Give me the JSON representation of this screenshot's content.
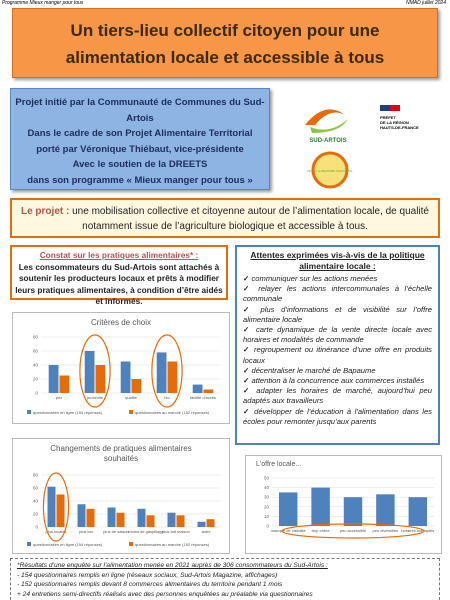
{
  "header": {
    "left": "Programme Mieux manger pour tous",
    "right": "NMAD juillet 2024"
  },
  "title": "Un tiers-lieu collectif citoyen pour une alimentation locale et accessible à tous",
  "intro": [
    "Projet initié par la Communauté de Communes du Sud-Artois",
    "Dans le cadre de son Projet Alimentaire Territorial",
    "porté par Véronique Thiébaut, vice-présidente",
    "Avec le soutien de la DREETS",
    "dans son programme « Mieux manger pour tous »"
  ],
  "logos": {
    "sud_artois": "SUD-ARTOIS",
    "pat": "PROJET ALIMENTAIRE TERRITORIAL",
    "prefet": [
      "PRÉFET",
      "DE LA RÉGION",
      "HAUTS-DE-FRANCE"
    ]
  },
  "projet": {
    "label": "Le projet :",
    "text": "une mobilisation collective et citoyenne autour de l’alimentation locale, de qualité notamment issue de l’agriculture biologique et accessible à tous."
  },
  "constat": {
    "title": "Constat sur les pratiques alimentaires* :",
    "text": "Les consommateurs du Sud-Artois sont attachés à soutenir les producteurs locaux et prêts à modifier leurs pratiques alimentaires, à condition d’être aidés et informés."
  },
  "attentes": {
    "title": "Attentes exprimées vis-à-vis de la politique alimentaire locale :",
    "items": [
      "communiquer sur les actions menées",
      "relayer les actions intercommunales à l’échelle communale",
      "plus d’informations et de visibilité sur l’offre alimentaire locale",
      "carte dynamique de la vente directe locale avec horaires et modalités de commande",
      "regroupement ou itinérance d’une offre en produits locaux",
      "décentraliser le marché de Bapaume",
      "attention à la concurrence aux commerces installés",
      "adapter les horaires de marché, aujourd’hui peu adaptés aux travailleurs",
      "développer de l’éducation à l’alimentation dans les écoles pour remonter jusqu’aux parents"
    ]
  },
  "charts": [
    {
      "type": "bar",
      "title": "Critères de choix",
      "categories": [
        "prix",
        "proximité",
        "qualité",
        "bio",
        "facilité d'accès"
      ],
      "ylim": [
        0,
        80
      ],
      "yticks": [
        0,
        20,
        40,
        60,
        80
      ],
      "series": [
        {
          "name": "questionnaires en ligne (154 réponses)",
          "color": "#4f81bd",
          "values": [
            40,
            60,
            45,
            58,
            12
          ]
        },
        {
          "name": "questionnaires au marché (152 réponses)",
          "color": "#e46c0a",
          "values": [
            25,
            40,
            20,
            45,
            5
          ]
        }
      ]
    },
    {
      "type": "bar",
      "title": "Changements de pratiques alimentaires souhaités",
      "categories": [
        "plus locales",
        "plus bio",
        "plus de saison",
        "moins de gaspillage",
        "plus fait maison",
        "autre"
      ],
      "ylim": [
        0,
        80
      ],
      "yticks": [
        0,
        20,
        40,
        60,
        80
      ],
      "series": [
        {
          "name": "questionnaires en ligne (154 réponses)",
          "color": "#4f81bd",
          "values": [
            62,
            35,
            30,
            28,
            22,
            8
          ]
        },
        {
          "name": "questionnaires au marché (152 réponses)",
          "color": "#e46c0a",
          "values": [
            50,
            28,
            22,
            18,
            18,
            12
          ]
        }
      ]
    },
    {
      "type": "bar",
      "title": "L'offre locale...",
      "categories": [
        "manque de visibilité",
        "trop chère",
        "peu accessible",
        "peu diversifiée",
        "horaires inadaptés"
      ],
      "ylim": [
        0,
        50
      ],
      "yticks": [
        0,
        10,
        20,
        30,
        40,
        50
      ],
      "series": [
        {
          "name": "réponses",
          "color": "#4f81bd",
          "values": [
            35,
            40,
            30,
            33,
            30
          ]
        }
      ]
    }
  ],
  "footnote": [
    "*Résultats d’une enquête sur l’alimentation menée en 2021 auprès de 306 consommateurs du Sud-Artois :",
    "- 154 questionnaires remplis en ligne (réseaux sociaux, Sud-Artois Magazine, affichages)",
    "- 152 questionnaires remplis devant 8 commerces alimentaires du territoire pendant 1 mois",
    "+ 24 entretiens semi-directifs réalisés avec des personnes enquêtées au préalable via questionnaires"
  ]
}
